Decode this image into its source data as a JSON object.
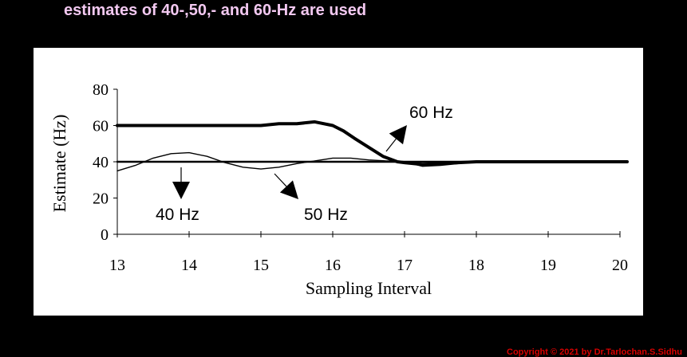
{
  "slide": {
    "heading": "estimates of 40-,50,- and 60-Hz are used",
    "copyright": "Copyright © 2021 by Dr.Tarlochan.S.Sidhu"
  },
  "colors": {
    "background": "#000000",
    "panel": "#ffffff",
    "heading": "#f2c8f0",
    "copyright": "#d80000"
  },
  "chart_data": {
    "type": "line",
    "xlabel": "Sampling Interval",
    "ylabel": "Estimate (Hz)",
    "xlim": [
      13,
      20
    ],
    "ylim": [
      0,
      80
    ],
    "x_ticks": [
      13,
      14,
      15,
      16,
      17,
      18,
      19,
      20
    ],
    "y_ticks": [
      0,
      20,
      40,
      60,
      80
    ],
    "grid": false,
    "legend": "none",
    "series": [
      {
        "key": "s60",
        "x": [
          13,
          13.5,
          14,
          14.5,
          15,
          15.25,
          15.5,
          15.75,
          16,
          16.15,
          16.3,
          16.5,
          16.7,
          16.9,
          17,
          17.25,
          17.5,
          18,
          19,
          20.1
        ],
        "y": [
          60,
          60,
          60,
          60,
          60,
          61,
          61,
          62,
          60,
          57,
          53,
          48,
          43,
          40,
          39.5,
          38.5,
          39,
          40,
          40,
          40
        ]
      },
      {
        "key": "s50",
        "x": [
          13,
          13.25,
          13.5,
          13.75,
          14,
          14.25,
          14.5,
          14.75,
          15,
          15.25,
          15.5,
          15.75,
          16,
          16.25,
          16.5,
          16.75,
          17,
          17.25,
          17.5,
          17.75,
          18,
          20.1
        ],
        "y": [
          35,
          38,
          42,
          44.5,
          45,
          43,
          39.5,
          37,
          36,
          37,
          39,
          40.5,
          42,
          42,
          41,
          40.5,
          40,
          37.5,
          38,
          39,
          40,
          40
        ]
      },
      {
        "key": "s40",
        "x": [
          13,
          20.1
        ],
        "y": [
          40,
          40
        ]
      }
    ],
    "annotations": [
      {
        "text": "60 Hz",
        "x": 17.05,
        "y": 65
      },
      {
        "text": "40 Hz",
        "x": 13.5,
        "y": 10
      },
      {
        "text": "50 Hz",
        "x": 15.55,
        "y": 10
      }
    ]
  }
}
